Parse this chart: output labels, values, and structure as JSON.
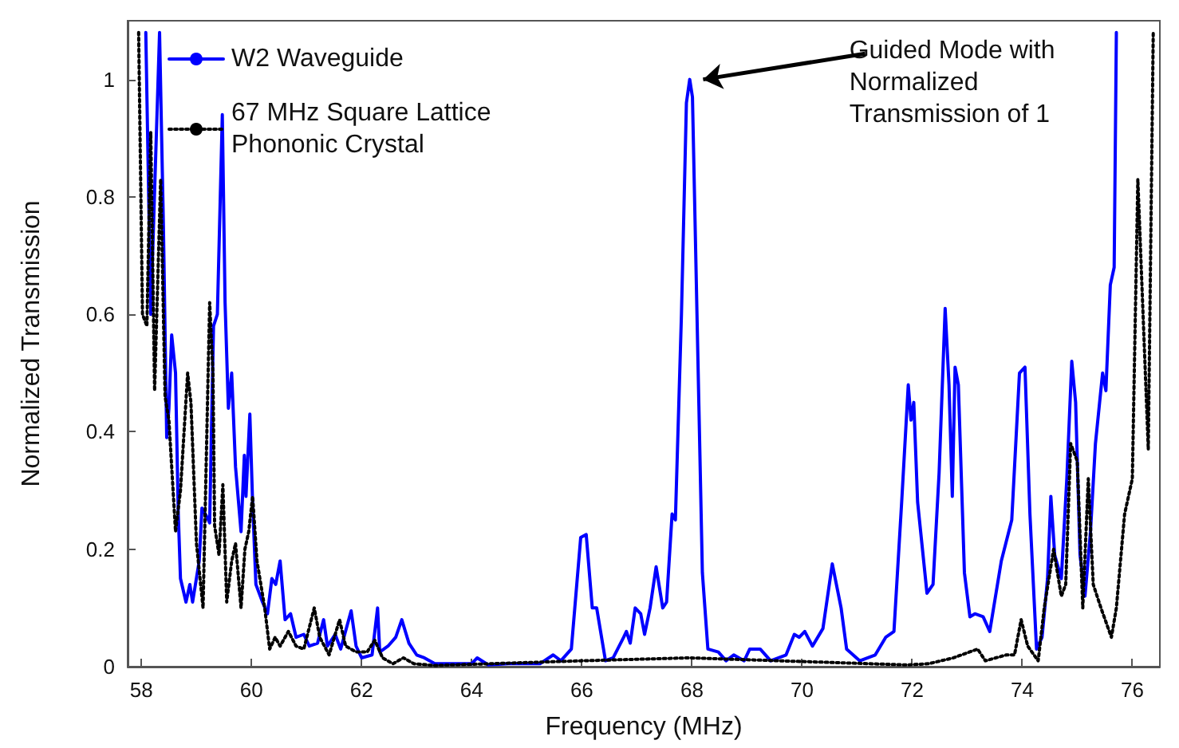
{
  "chart_data": {
    "type": "line",
    "xlabel": "Frequency (MHz)",
    "ylabel": "Normalized Transmission",
    "xlim": [
      57.75,
      76.5
    ],
    "xticks": [
      58,
      60,
      62,
      64,
      66,
      68,
      70,
      72,
      74,
      76
    ],
    "ylim": [
      0,
      1.1
    ],
    "yticks": [
      0,
      0.2,
      0.4,
      0.6,
      0.8,
      1
    ],
    "grid": false,
    "legend": "top left",
    "marker": "none",
    "annotations": [
      {
        "text": "Guided Mode with\nNormalized\nTransmission of 1",
        "x": 67.96,
        "y": 1.0
      }
    ],
    "series": [
      {
        "name": "W2 Waveguide",
        "color": "#0000ff",
        "line_style": "solid",
        "x": [
          58.08,
          58.17,
          58.33,
          58.4,
          58.46,
          58.5,
          58.55,
          58.62,
          58.67,
          58.71,
          58.81,
          58.88,
          58.93,
          59.05,
          59.1,
          59.19,
          59.24,
          59.31,
          59.38,
          59.47,
          59.52,
          59.58,
          59.64,
          59.71,
          59.81,
          59.87,
          59.9,
          59.97,
          60.02,
          60.08,
          60.2,
          60.29,
          60.37,
          60.44,
          60.52,
          60.61,
          60.71,
          60.81,
          60.95,
          61.05,
          61.2,
          61.31,
          61.38,
          61.52,
          61.62,
          61.81,
          61.9,
          62.0,
          62.19,
          62.29,
          62.33,
          62.48,
          62.62,
          62.73,
          62.86,
          63.0,
          63.14,
          63.33,
          64.0,
          64.1,
          64.3,
          64.67,
          65.24,
          65.48,
          65.62,
          65.81,
          65.98,
          66.08,
          66.19,
          66.27,
          66.43,
          66.57,
          66.76,
          66.81,
          66.88,
          66.97,
          67.07,
          67.14,
          67.24,
          67.35,
          67.47,
          67.54,
          67.64,
          67.7,
          67.81,
          67.9,
          67.96,
          68.01,
          68.11,
          68.19,
          68.29,
          68.48,
          68.62,
          68.76,
          68.95,
          69.05,
          69.24,
          69.43,
          69.71,
          69.86,
          69.95,
          70.05,
          70.19,
          70.38,
          70.55,
          70.71,
          70.81,
          71.05,
          71.33,
          71.52,
          71.67,
          71.81,
          71.93,
          71.98,
          72.03,
          72.1,
          72.27,
          72.38,
          72.49,
          72.6,
          72.67,
          72.73,
          72.78,
          72.84,
          72.95,
          73.05,
          73.14,
          73.29,
          73.41,
          73.62,
          73.81,
          73.95,
          74.05,
          74.14,
          74.26,
          74.36,
          74.46,
          74.52,
          74.59,
          74.71,
          74.81,
          74.9,
          74.97,
          75.05,
          75.14,
          75.24,
          75.33,
          75.46,
          75.52,
          75.6,
          75.67,
          75.71
        ],
        "values": [
          1.08,
          0.6,
          1.08,
          0.75,
          0.39,
          0.44,
          0.565,
          0.5,
          0.26,
          0.15,
          0.11,
          0.14,
          0.11,
          0.18,
          0.27,
          0.255,
          0.245,
          0.58,
          0.6,
          0.94,
          0.62,
          0.44,
          0.5,
          0.34,
          0.23,
          0.36,
          0.29,
          0.43,
          0.28,
          0.14,
          0.11,
          0.09,
          0.15,
          0.14,
          0.18,
          0.08,
          0.09,
          0.05,
          0.055,
          0.035,
          0.04,
          0.08,
          0.035,
          0.055,
          0.03,
          0.095,
          0.035,
          0.015,
          0.02,
          0.1,
          0.025,
          0.035,
          0.05,
          0.08,
          0.04,
          0.02,
          0.015,
          0.005,
          0.005,
          0.015,
          0.003,
          0.005,
          0.005,
          0.02,
          0.01,
          0.03,
          0.22,
          0.225,
          0.1,
          0.1,
          0.01,
          0.015,
          0.05,
          0.06,
          0.04,
          0.1,
          0.09,
          0.055,
          0.1,
          0.17,
          0.1,
          0.11,
          0.26,
          0.25,
          0.6,
          0.96,
          1.0,
          0.97,
          0.52,
          0.16,
          0.03,
          0.025,
          0.01,
          0.02,
          0.01,
          0.03,
          0.03,
          0.01,
          0.02,
          0.055,
          0.05,
          0.06,
          0.035,
          0.065,
          0.175,
          0.1,
          0.03,
          0.01,
          0.02,
          0.05,
          0.06,
          0.28,
          0.48,
          0.42,
          0.45,
          0.28,
          0.125,
          0.14,
          0.33,
          0.61,
          0.48,
          0.29,
          0.51,
          0.48,
          0.16,
          0.085,
          0.09,
          0.085,
          0.06,
          0.18,
          0.25,
          0.5,
          0.51,
          0.26,
          0.03,
          0.05,
          0.15,
          0.29,
          0.19,
          0.15,
          0.32,
          0.52,
          0.45,
          0.19,
          0.12,
          0.23,
          0.38,
          0.5,
          0.47,
          0.65,
          0.68,
          1.08
        ]
      },
      {
        "name": "67 MHz Square Lattice Phononic Crystal",
        "color": "#000000",
        "line_style": "dotted",
        "x": [
          57.95,
          58.02,
          58.1,
          58.17,
          58.24,
          58.35,
          58.43,
          58.5,
          58.62,
          58.71,
          58.84,
          58.9,
          59.0,
          59.12,
          59.24,
          59.3,
          59.33,
          59.41,
          59.48,
          59.55,
          59.64,
          59.71,
          59.81,
          59.88,
          59.95,
          60.02,
          60.1,
          60.24,
          60.33,
          60.43,
          60.52,
          60.67,
          60.81,
          60.95,
          61.14,
          61.24,
          61.41,
          61.6,
          61.71,
          61.9,
          62.1,
          62.24,
          62.38,
          62.57,
          62.76,
          62.95,
          63.33,
          66.0,
          67.95,
          71.9,
          72.3,
          72.75,
          73.19,
          73.33,
          73.71,
          73.86,
          73.98,
          74.1,
          74.29,
          74.4,
          74.57,
          74.71,
          74.79,
          74.88,
          75.0,
          75.1,
          75.2,
          75.29,
          75.43,
          75.62,
          75.71,
          75.86,
          76.0,
          76.1,
          76.29,
          76.38
        ],
        "values": [
          1.08,
          0.6,
          0.58,
          0.91,
          0.47,
          0.83,
          0.46,
          0.42,
          0.23,
          0.3,
          0.5,
          0.45,
          0.21,
          0.1,
          0.62,
          0.5,
          0.24,
          0.19,
          0.31,
          0.11,
          0.18,
          0.21,
          0.1,
          0.2,
          0.23,
          0.29,
          0.18,
          0.1,
          0.03,
          0.05,
          0.035,
          0.06,
          0.035,
          0.03,
          0.1,
          0.05,
          0.02,
          0.08,
          0.035,
          0.025,
          0.025,
          0.045,
          0.015,
          0.005,
          0.015,
          0.005,
          0.002,
          0.01,
          0.015,
          0.003,
          0.005,
          0.015,
          0.03,
          0.01,
          0.02,
          0.02,
          0.08,
          0.035,
          0.01,
          0.1,
          0.2,
          0.12,
          0.14,
          0.38,
          0.35,
          0.1,
          0.32,
          0.14,
          0.1,
          0.05,
          0.1,
          0.26,
          0.32,
          0.83,
          0.37,
          1.08
        ]
      }
    ]
  }
}
